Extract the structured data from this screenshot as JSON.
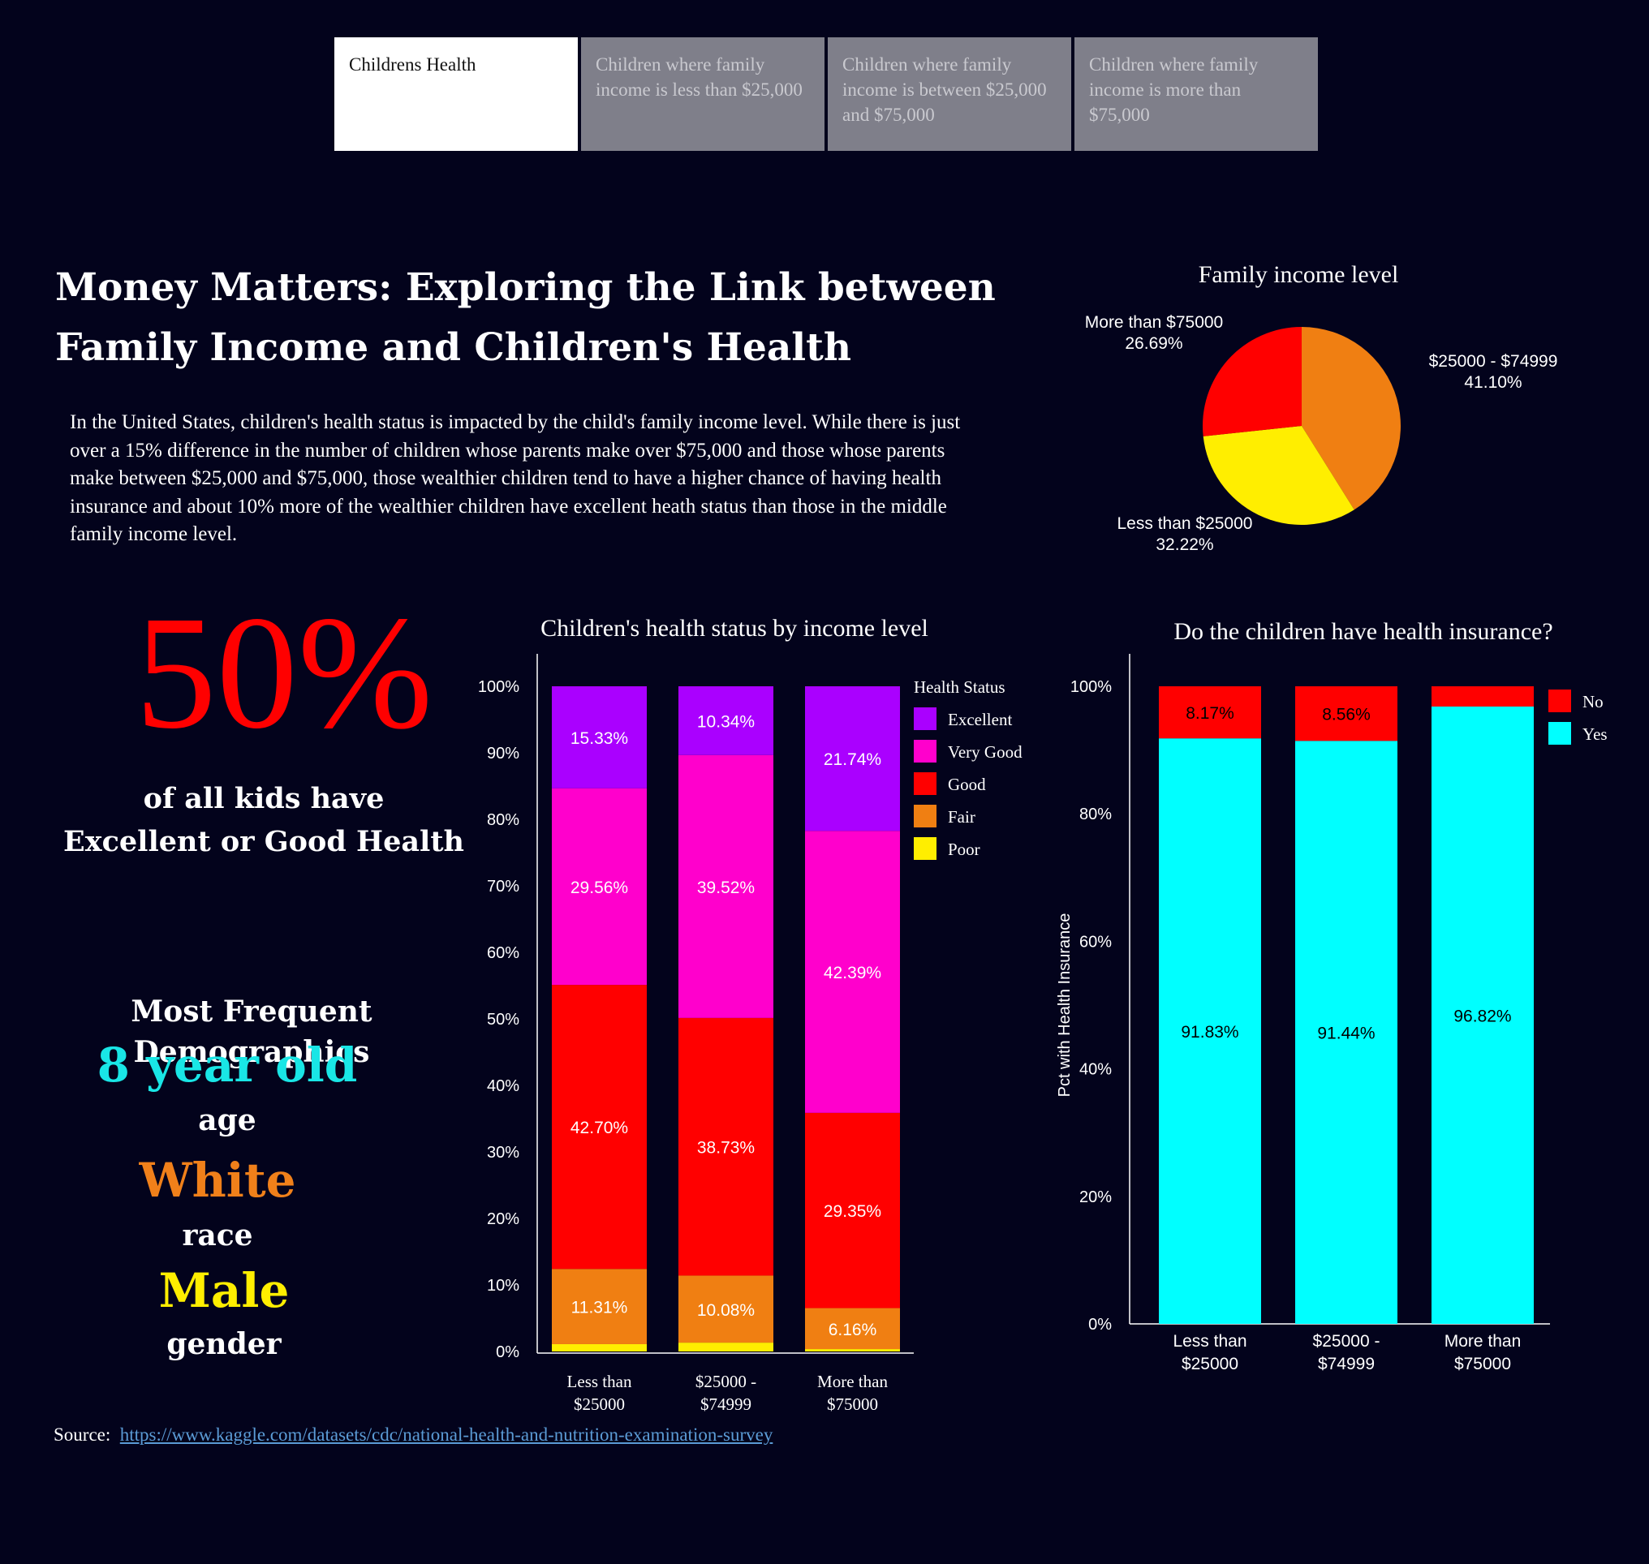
{
  "tabs": [
    {
      "label": "Childrens Health",
      "active": true
    },
    {
      "label": "Children where family income is less than $25,000",
      "active": false
    },
    {
      "label": "Children where family income is between $25,000 and $75,000",
      "active": false
    },
    {
      "label": "Children where family income is more than $75,000",
      "active": false
    }
  ],
  "title_line1": "Money Matters: Exploring the Link between",
  "title_line2": "Family Income and Children's Health",
  "intro": "In the United States, children's health status is impacted by the child's family income level. While there is just over a 15% difference in the number of children whose parents make over $75,000 and those whose parents make between $25,000 and $75,000, those wealthier children tend to have a higher chance of having health insurance and about 10% more of the wealthier children have excellent heath status than those in the middle family income level.",
  "stat": {
    "value": "50%",
    "caption_line1": "of all kids have",
    "caption_line2": "Excellent or Good Health",
    "color": "#ff0000"
  },
  "demographics": {
    "heading": "Most Frequent Demographics",
    "items": [
      {
        "value": "8 year old",
        "label": "age",
        "color": "#19e6e6"
      },
      {
        "value": "White",
        "label": "race",
        "color": "#f0801a"
      },
      {
        "value": "Male",
        "label": "gender",
        "color": "#ffee00"
      }
    ]
  },
  "source": {
    "label": "Source:",
    "link": "https://www.kaggle.com/datasets/cdc/national-health-and-nutrition-examination-survey"
  },
  "chart_data": [
    {
      "type": "pie",
      "title": "Family income level",
      "slices": [
        {
          "label": "$25000 - $74999",
          "value": 41.1,
          "pct_label": "41.10%",
          "color": "#f07f12"
        },
        {
          "label": "Less than $25000",
          "value": 32.22,
          "pct_label": "32.22%",
          "color": "#ffee00"
        },
        {
          "label": "More than $75000",
          "value": 26.69,
          "pct_label": "26.69%",
          "color": "#ff0000"
        }
      ]
    },
    {
      "type": "bar",
      "stacked": true,
      "title": "Children's health status by income level",
      "categories": [
        "Less than $25000",
        "$25000 - $74999",
        "More than $75000"
      ],
      "category_lines": [
        [
          "Less than",
          "$25000"
        ],
        [
          "$25000 -",
          "$74999"
        ],
        [
          "More than",
          "$75000"
        ]
      ],
      "ylim": [
        0,
        100
      ],
      "yticks": [
        "0%",
        "10%",
        "20%",
        "30%",
        "40%",
        "50%",
        "60%",
        "70%",
        "80%",
        "90%",
        "100%"
      ],
      "legend_title": "Health Status",
      "legend_position": "right",
      "series": [
        {
          "name": "Poor",
          "color": "#ffee00",
          "values": [
            1.1,
            1.33,
            0.36
          ],
          "labels": [
            "",
            "",
            ""
          ]
        },
        {
          "name": "Fair",
          "color": "#f07f12",
          "values": [
            11.31,
            10.08,
            6.16
          ],
          "labels": [
            "11.31%",
            "10.08%",
            "6.16%"
          ]
        },
        {
          "name": "Good",
          "color": "#ff0000",
          "values": [
            42.7,
            38.73,
            29.35
          ],
          "labels": [
            "42.70%",
            "38.73%",
            "29.35%"
          ]
        },
        {
          "name": "Very Good",
          "color": "#ff00cc",
          "values": [
            29.56,
            39.52,
            42.39
          ],
          "labels": [
            "29.56%",
            "39.52%",
            "42.39%"
          ]
        },
        {
          "name": "Excellent",
          "color": "#aa00ff",
          "values": [
            15.33,
            10.34,
            21.74
          ],
          "labels": [
            "15.33%",
            "10.34%",
            "21.74%"
          ]
        }
      ],
      "legend_order": [
        "Excellent",
        "Very Good",
        "Good",
        "Fair",
        "Poor"
      ]
    },
    {
      "type": "bar",
      "stacked": true,
      "title": "Do the children have health insurance?",
      "ylabel": "Pct with Health Insurance",
      "categories": [
        "Less than $25000",
        "$25000 - $74999",
        "More than $75000"
      ],
      "category_lines": [
        [
          "Less than",
          "$25000"
        ],
        [
          "$25000 -",
          "$74999"
        ],
        [
          "More than",
          "$75000"
        ]
      ],
      "ylim": [
        0,
        100
      ],
      "yticks": [
        "0%",
        "20%",
        "40%",
        "60%",
        "80%",
        "100%"
      ],
      "legend_position": "top-right",
      "series": [
        {
          "name": "Yes",
          "color": "#00ffff",
          "values": [
            91.83,
            91.44,
            96.82
          ],
          "labels": [
            "91.83%",
            "91.44%",
            "96.82%"
          ]
        },
        {
          "name": "No",
          "color": "#ff0000",
          "values": [
            8.17,
            8.56,
            3.18
          ],
          "labels": [
            "8.17%",
            "8.56%",
            ""
          ]
        }
      ],
      "legend_order": [
        "No",
        "Yes"
      ]
    }
  ]
}
